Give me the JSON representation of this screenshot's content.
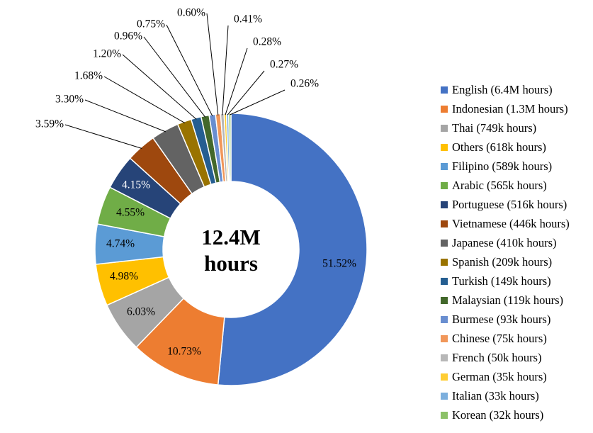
{
  "chart_data": {
    "type": "pie",
    "style": "donut",
    "center_label": [
      "12.4M",
      "hours"
    ],
    "slices": [
      {
        "label": "English (6.4M hours)",
        "value": 51.52,
        "pct_label": "51.52%",
        "color": "#4472C4"
      },
      {
        "label": "Indonesian (1.3M hours)",
        "value": 10.73,
        "pct_label": "10.73%",
        "color": "#ED7D31"
      },
      {
        "label": "Thai (749k hours)",
        "value": 6.03,
        "pct_label": "6.03%",
        "color": "#A5A5A5"
      },
      {
        "label": "Others (618k hours)",
        "value": 4.98,
        "pct_label": "4.98%",
        "color": "#FFC000"
      },
      {
        "label": "Filipino (589k hours)",
        "value": 4.74,
        "pct_label": "4.74%",
        "color": "#5B9BD5"
      },
      {
        "label": "Arabic (565k hours)",
        "value": 4.55,
        "pct_label": "4.55%",
        "color": "#70AD47"
      },
      {
        "label": "Portuguese (516k hours)",
        "value": 4.15,
        "pct_label": "4.15%",
        "color": "#264478"
      },
      {
        "label": "Vietnamese (446k hours)",
        "value": 3.59,
        "pct_label": "3.59%",
        "color": "#9E480E"
      },
      {
        "label": "Japanese (410k hours)",
        "value": 3.3,
        "pct_label": "3.30%",
        "color": "#636363"
      },
      {
        "label": "Spanish (209k hours)",
        "value": 1.68,
        "pct_label": "1.68%",
        "color": "#997300"
      },
      {
        "label": "Turkish (149k hours)",
        "value": 1.2,
        "pct_label": "1.20%",
        "color": "#255E91"
      },
      {
        "label": "Malaysian (119k hours)",
        "value": 0.96,
        "pct_label": "0.96%",
        "color": "#43682B"
      },
      {
        "label": "Burmese (93k hours)",
        "value": 0.75,
        "pct_label": "0.75%",
        "color": "#698ED0"
      },
      {
        "label": "Chinese (75k hours)",
        "value": 0.6,
        "pct_label": "0.60%",
        "color": "#F1975A"
      },
      {
        "label": "French (50k hours)",
        "value": 0.41,
        "pct_label": "0.41%",
        "color": "#B7B7B7"
      },
      {
        "label": "German (35k hours)",
        "value": 0.28,
        "pct_label": "0.28%",
        "color": "#FFCD33"
      },
      {
        "label": "Italian (33k hours)",
        "value": 0.27,
        "pct_label": "0.27%",
        "color": "#7CAFDD"
      },
      {
        "label": "Korean (32k hours)",
        "value": 0.26,
        "pct_label": "0.26%",
        "color": "#8CC168"
      }
    ],
    "legend_position": "right"
  }
}
